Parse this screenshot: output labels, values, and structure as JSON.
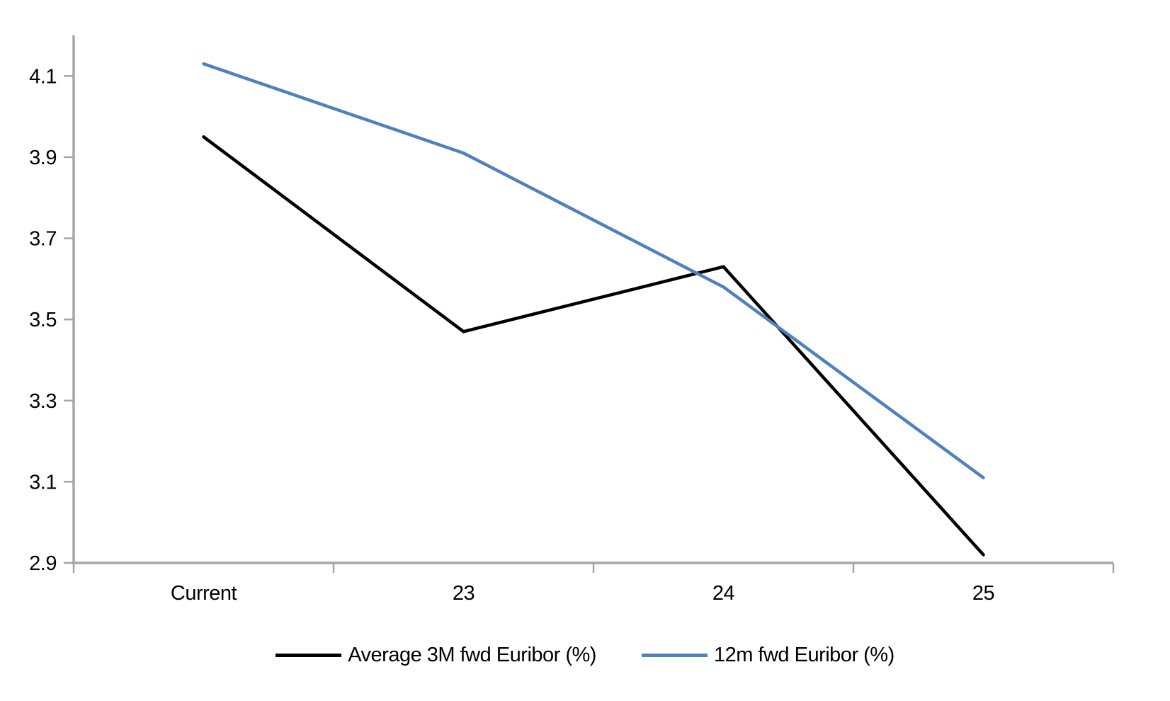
{
  "chart_data": {
    "type": "line",
    "categories": [
      "Current",
      "23",
      "24",
      "25"
    ],
    "series": [
      {
        "name": "Average 3M fwd Euribor (%)",
        "color": "#000000",
        "values": [
          3.95,
          3.47,
          3.63,
          2.92
        ]
      },
      {
        "name": "12m fwd Euribor (%)",
        "color": "#4F81BD",
        "values": [
          4.13,
          3.91,
          3.58,
          3.11
        ]
      }
    ],
    "title": "",
    "xlabel": "",
    "ylabel": "",
    "ylim": [
      2.9,
      4.2
    ],
    "yticks": [
      2.9,
      3.1,
      3.3,
      3.5,
      3.7,
      3.9,
      4.1
    ],
    "ytick_format_decimals": 1,
    "grid": false,
    "legend_position": "bottom",
    "axis_color": "#A6A6A6",
    "tick_label_color": "#000000"
  }
}
